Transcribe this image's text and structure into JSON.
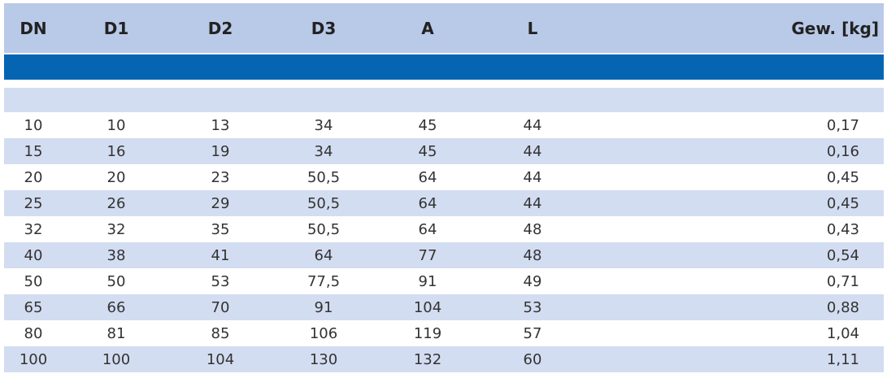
{
  "table": {
    "headers": {
      "dn": "DN",
      "d1": "D1",
      "d2": "D2",
      "d3": "D3",
      "a": "A",
      "l": "L",
      "gew": "Gew. [kg]"
    },
    "rows": [
      {
        "dn": "10",
        "d1": "10",
        "d2": "13",
        "d3": "34",
        "a": "45",
        "l": "44",
        "gew": "0,17"
      },
      {
        "dn": "15",
        "d1": "16",
        "d2": "19",
        "d3": "34",
        "a": "45",
        "l": "44",
        "gew": "0,16"
      },
      {
        "dn": "20",
        "d1": "20",
        "d2": "23",
        "d3": "50,5",
        "a": "64",
        "l": "44",
        "gew": "0,45"
      },
      {
        "dn": "25",
        "d1": "26",
        "d2": "29",
        "d3": "50,5",
        "a": "64",
        "l": "44",
        "gew": "0,45"
      },
      {
        "dn": "32",
        "d1": "32",
        "d2": "35",
        "d3": "50,5",
        "a": "64",
        "l": "48",
        "gew": "0,43"
      },
      {
        "dn": "40",
        "d1": "38",
        "d2": "41",
        "d3": "64",
        "a": "77",
        "l": "48",
        "gew": "0,54"
      },
      {
        "dn": "50",
        "d1": "50",
        "d2": "53",
        "d3": "77,5",
        "a": "91",
        "l": "49",
        "gew": "0,71"
      },
      {
        "dn": "65",
        "d1": "66",
        "d2": "70",
        "d3": "91",
        "a": "104",
        "l": "53",
        "gew": "0,88"
      },
      {
        "dn": "80",
        "d1": "81",
        "d2": "85",
        "d3": "106",
        "a": "119",
        "l": "57",
        "gew": "1,04"
      },
      {
        "dn": "100",
        "d1": "100",
        "d2": "104",
        "d3": "130",
        "a": "132",
        "l": "60",
        "gew": "1,11"
      }
    ]
  },
  "colors": {
    "header_bg": "#b9c9e8",
    "band": "#0565b3",
    "stripe": "#d3ddf1"
  }
}
